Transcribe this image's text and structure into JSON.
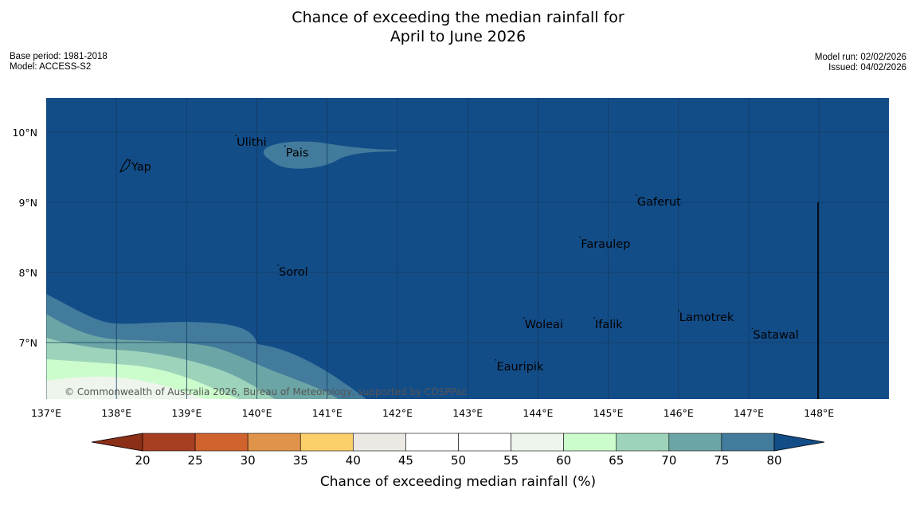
{
  "header": {
    "title_line1": "Chance of exceeding the median rainfall for",
    "title_line2": "April to June 2026",
    "base_period": "Base period: 1981-2018",
    "model": "Model: ACCESS-S2",
    "model_run": "Model run: 02/02/2026",
    "issued": "Issued: 04/02/2026"
  },
  "map": {
    "lon_labels": [
      "137°E",
      "138°E",
      "139°E",
      "140°E",
      "141°E",
      "142°E",
      "143°E",
      "144°E",
      "145°E",
      "146°E",
      "147°E",
      "148°E"
    ],
    "lat_labels": [
      "10°N",
      "9°N",
      "8°N",
      "7°N"
    ],
    "places": [
      {
        "name": "Ulithi",
        "lon": 139.7,
        "lat": 9.85
      },
      {
        "name": "Pais",
        "lon": 140.4,
        "lat": 9.7
      },
      {
        "name": "Yap",
        "lon": 138.2,
        "lat": 9.5
      },
      {
        "name": "Gaferut",
        "lon": 145.4,
        "lat": 9.0
      },
      {
        "name": "Faraulep",
        "lon": 144.6,
        "lat": 8.4
      },
      {
        "name": "Sorol",
        "lon": 140.3,
        "lat": 8.0
      },
      {
        "name": "Lamotrek",
        "lon": 146.0,
        "lat": 7.35
      },
      {
        "name": "Woleai",
        "lon": 143.8,
        "lat": 7.25
      },
      {
        "name": "Ifalik",
        "lon": 144.8,
        "lat": 7.25
      },
      {
        "name": "Satawal",
        "lon": 147.05,
        "lat": 7.1
      },
      {
        "name": "Eauripik",
        "lon": 143.4,
        "lat": 6.65
      }
    ],
    "copyright": "© Commonwealth of Australia 2026, Bureau of Meteorology, supported by COSPPac"
  },
  "legend": {
    "title": "Chance of exceeding median rainfall (%)",
    "ticks": [
      "20",
      "25",
      "30",
      "35",
      "40",
      "45",
      "50",
      "55",
      "60",
      "65",
      "70",
      "75",
      "80"
    ],
    "colors": [
      "#a63e22",
      "#d0622d",
      "#e0944a",
      "#fbcf6a",
      "#ece9e4",
      "#ffffff",
      "#ffffff",
      "#edf5ec",
      "#ccfccc",
      "#9dd3ba",
      "#6ca5a5",
      "#427b9c"
    ],
    "under_color": "#8c2f18",
    "over_color": "#134d88"
  },
  "colors": {
    "ocean": "#134d88",
    "band75": "#427b9c",
    "band70": "#6ca5a5",
    "band65": "#9dd3ba",
    "band60": "#ccfccc",
    "band55": "#edf5ec"
  }
}
